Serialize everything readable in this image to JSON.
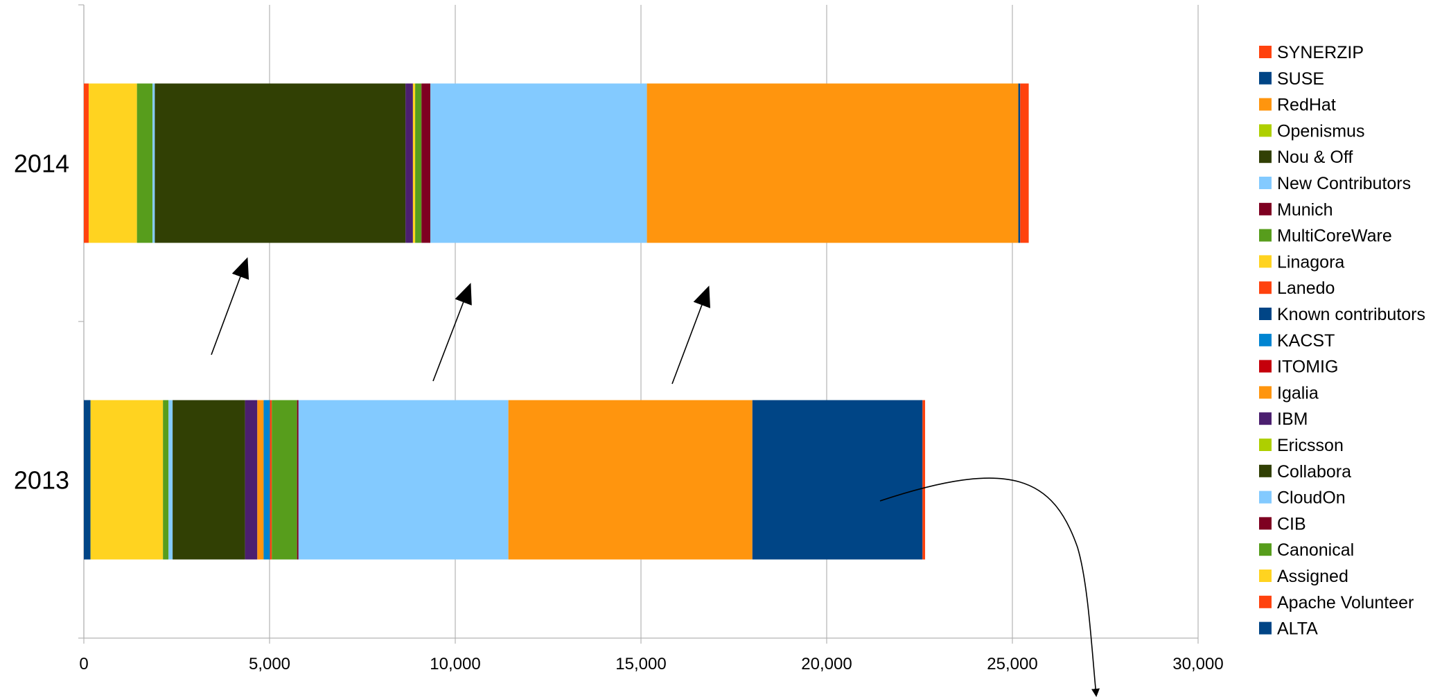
{
  "chart_data": {
    "type": "bar",
    "orientation": "horizontal",
    "stacked": true,
    "categories": [
      "2014",
      "2013"
    ],
    "xlim": [
      0,
      30000
    ],
    "xticks": [
      "0",
      "5,000",
      "10,000",
      "15,000",
      "20,000",
      "25,000",
      "30,000"
    ],
    "grid": true,
    "legend_position": "right",
    "series": [
      {
        "name": "ALTA",
        "color": "#004586",
        "values": [
          0,
          180
        ]
      },
      {
        "name": "Apache Volunteer",
        "color": "#ff420e",
        "values": [
          130,
          0
        ]
      },
      {
        "name": "Assigned",
        "color": "#ffd320",
        "values": [
          1300,
          1950
        ]
      },
      {
        "name": "Canonical",
        "color": "#579d1c",
        "values": [
          420,
          150
        ]
      },
      {
        "name": "CIB",
        "color": "#7e0021",
        "values": [
          0,
          0
        ]
      },
      {
        "name": "CloudOn",
        "color": "#83caff",
        "values": [
          60,
          110
        ]
      },
      {
        "name": "Collabora",
        "color": "#314004",
        "values": [
          6750,
          1950
        ]
      },
      {
        "name": "Ericsson",
        "color": "#aecf00",
        "values": [
          0,
          0
        ]
      },
      {
        "name": "IBM",
        "color": "#4b1f6f",
        "values": [
          200,
          330
        ]
      },
      {
        "name": "Igalia",
        "color": "#ff950e",
        "values": [
          0,
          170
        ]
      },
      {
        "name": "ITOMIG",
        "color": "#c5000b",
        "values": [
          0,
          0
        ]
      },
      {
        "name": "KACST",
        "color": "#0084d1",
        "values": [
          0,
          170
        ]
      },
      {
        "name": "Known contributors",
        "color": "#004586",
        "values": [
          0,
          0
        ]
      },
      {
        "name": "Lanedo",
        "color": "#ff420e",
        "values": [
          0,
          50
        ]
      },
      {
        "name": "Linagora",
        "color": "#ffd320",
        "values": [
          60,
          0
        ]
      },
      {
        "name": "MultiCoreWare",
        "color": "#579d1c",
        "values": [
          170,
          680
        ]
      },
      {
        "name": "Munich",
        "color": "#7e0021",
        "values": [
          240,
          40
        ]
      },
      {
        "name": "New Contributors",
        "color": "#83caff",
        "values": [
          5830,
          5650
        ]
      },
      {
        "name": "Nou & Off",
        "color": "#314004",
        "values": [
          0,
          0
        ]
      },
      {
        "name": "Openismus",
        "color": "#aecf00",
        "values": [
          0,
          0
        ]
      },
      {
        "name": "RedHat",
        "color": "#ff950e",
        "values": [
          10000,
          6570
        ]
      },
      {
        "name": "SUSE",
        "color": "#004586",
        "values": [
          50,
          4580
        ]
      },
      {
        "name": "SYNERZIP",
        "color": "#ff420e",
        "values": [
          230,
          70
        ]
      }
    ]
  },
  "legend_order": [
    "SYNERZIP",
    "SUSE",
    "RedHat",
    "Openismus",
    "Nou & Off",
    "New Contributors",
    "Munich",
    "MultiCoreWare",
    "Linagora",
    "Lanedo",
    "Known contributors",
    "KACST",
    "ITOMIG",
    "Igalia",
    "IBM",
    "Ericsson",
    "Collabora",
    "CloudOn",
    "CIB",
    "Canonical",
    "Assigned",
    "Apache Volunteer",
    "ALTA"
  ]
}
